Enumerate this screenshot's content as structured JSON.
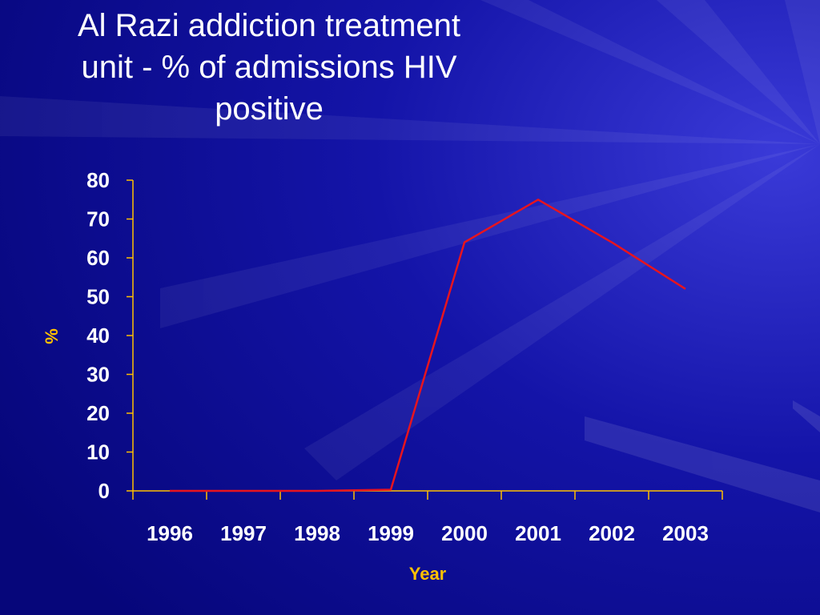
{
  "slide": {
    "title_lines": [
      "Al Razi addiction treatment",
      "unit - % of admissions HIV",
      "positive"
    ]
  },
  "colors": {
    "background": "#0a0a8c",
    "axis": "#ffc000",
    "line": "#e8141e",
    "tick_text": "#ffffff",
    "axis_title": "#ffc000"
  },
  "chart_data": {
    "type": "line",
    "title": "Al Razi addiction treatment unit - % of admissions HIV positive",
    "xlabel": "Year",
    "ylabel": "%",
    "categories": [
      "1996",
      "1997",
      "1998",
      "1999",
      "2000",
      "2001",
      "2002",
      "2003"
    ],
    "series": [
      {
        "values": [
          0,
          0,
          0,
          0.3,
          64,
          75,
          64,
          52
        ]
      }
    ],
    "ylim": [
      0,
      80
    ],
    "yticks": [
      0,
      10,
      20,
      30,
      40,
      50,
      60,
      70,
      80
    ],
    "grid": false,
    "legend": "none"
  }
}
